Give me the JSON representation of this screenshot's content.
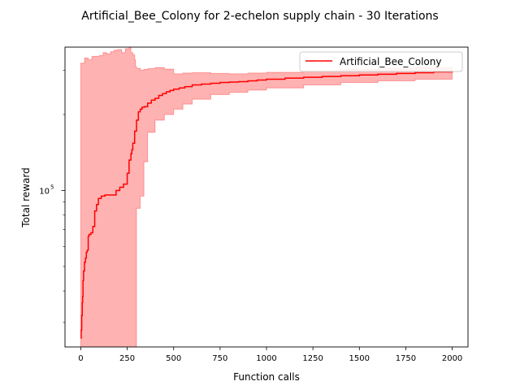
{
  "chart_data": {
    "type": "line",
    "title": "Artificial_Bee_Colony for 2-echelon supply chain - 30 Iterations",
    "xlabel": "Function calls",
    "ylabel": "Total reward",
    "xlim": [
      -85,
      2085
    ],
    "ylim": [
      24000,
      370000
    ],
    "y_scale": "log",
    "grid": false,
    "legend_position": "top-right",
    "x_ticks": [
      0,
      250,
      500,
      750,
      1000,
      1250,
      1500,
      1750,
      2000
    ],
    "x_tick_labels": [
      "0",
      "250",
      "500",
      "750",
      "1000",
      "1250",
      "1500",
      "1750",
      "2000"
    ],
    "y_major_ticks": [
      100000
    ],
    "y_major_tick_labels": [
      "10^5"
    ],
    "y_major_tick_base": "10",
    "y_major_tick_exp": "5",
    "y_minor_ticks": [
      30000,
      40000,
      50000,
      60000,
      70000,
      80000,
      90000,
      200000,
      300000
    ],
    "series": [
      {
        "name": "Artificial_Bee_Colony",
        "color": "#ff0000",
        "x": [
          0,
          2,
          5,
          8,
          10,
          12,
          15,
          20,
          25,
          30,
          35,
          40,
          45,
          55,
          65,
          75,
          85,
          95,
          110,
          130,
          150,
          170,
          190,
          210,
          230,
          250,
          260,
          270,
          275,
          280,
          290,
          300,
          310,
          320,
          330,
          345,
          360,
          380,
          400,
          420,
          440,
          460,
          480,
          500,
          530,
          560,
          600,
          650,
          700,
          750,
          800,
          850,
          900,
          950,
          1000,
          1100,
          1200,
          1300,
          1400,
          1500,
          1600,
          1700,
          1800,
          1900,
          2000
        ],
        "y": [
          26000,
          28000,
          32000,
          36000,
          38000,
          44000,
          48000,
          52000,
          54000,
          57000,
          58000,
          66000,
          67000,
          68000,
          72000,
          83000,
          88000,
          93000,
          95000,
          96000,
          96000,
          96000,
          100000,
          103000,
          106000,
          117000,
          132000,
          140000,
          145000,
          154000,
          172000,
          190000,
          205000,
          210000,
          214000,
          215000,
          222000,
          228000,
          232000,
          238000,
          242000,
          246000,
          249000,
          252000,
          255000,
          258000,
          262000,
          264000,
          266000,
          268000,
          269000,
          270000,
          272000,
          274000,
          276000,
          279000,
          281000,
          283000,
          285000,
          287000,
          289000,
          291000,
          293000,
          295000,
          297000
        ],
        "band_x": [
          0,
          20,
          40,
          60,
          80,
          100,
          120,
          140,
          160,
          180,
          200,
          220,
          240,
          260,
          270,
          280,
          290,
          295,
          300,
          320,
          340,
          360,
          400,
          450,
          500,
          550,
          600,
          700,
          800,
          900,
          1000,
          1200,
          1400,
          1600,
          1800,
          2000
        ],
        "band_low": [
          24000,
          24000,
          24000,
          24000,
          24000,
          24000,
          24000,
          24000,
          24000,
          24000,
          24000,
          24000,
          24000,
          24000,
          24000,
          24000,
          24000,
          24000,
          85000,
          95000,
          130000,
          170000,
          190000,
          200000,
          210000,
          220000,
          230000,
          240000,
          245000,
          250000,
          255000,
          262000,
          268000,
          272000,
          276000,
          280000
        ],
        "band_high": [
          320000,
          335000,
          330000,
          340000,
          340000,
          343000,
          352000,
          348000,
          355000,
          360000,
          362000,
          352000,
          365000,
          370000,
          352000,
          345000,
          330000,
          310000,
          305000,
          300000,
          302000,
          304000,
          307000,
          303000,
          290000,
          292000,
          293000,
          291000,
          290000,
          292000,
          294000,
          298000,
          302000,
          305000,
          308000,
          310000
        ]
      }
    ]
  }
}
